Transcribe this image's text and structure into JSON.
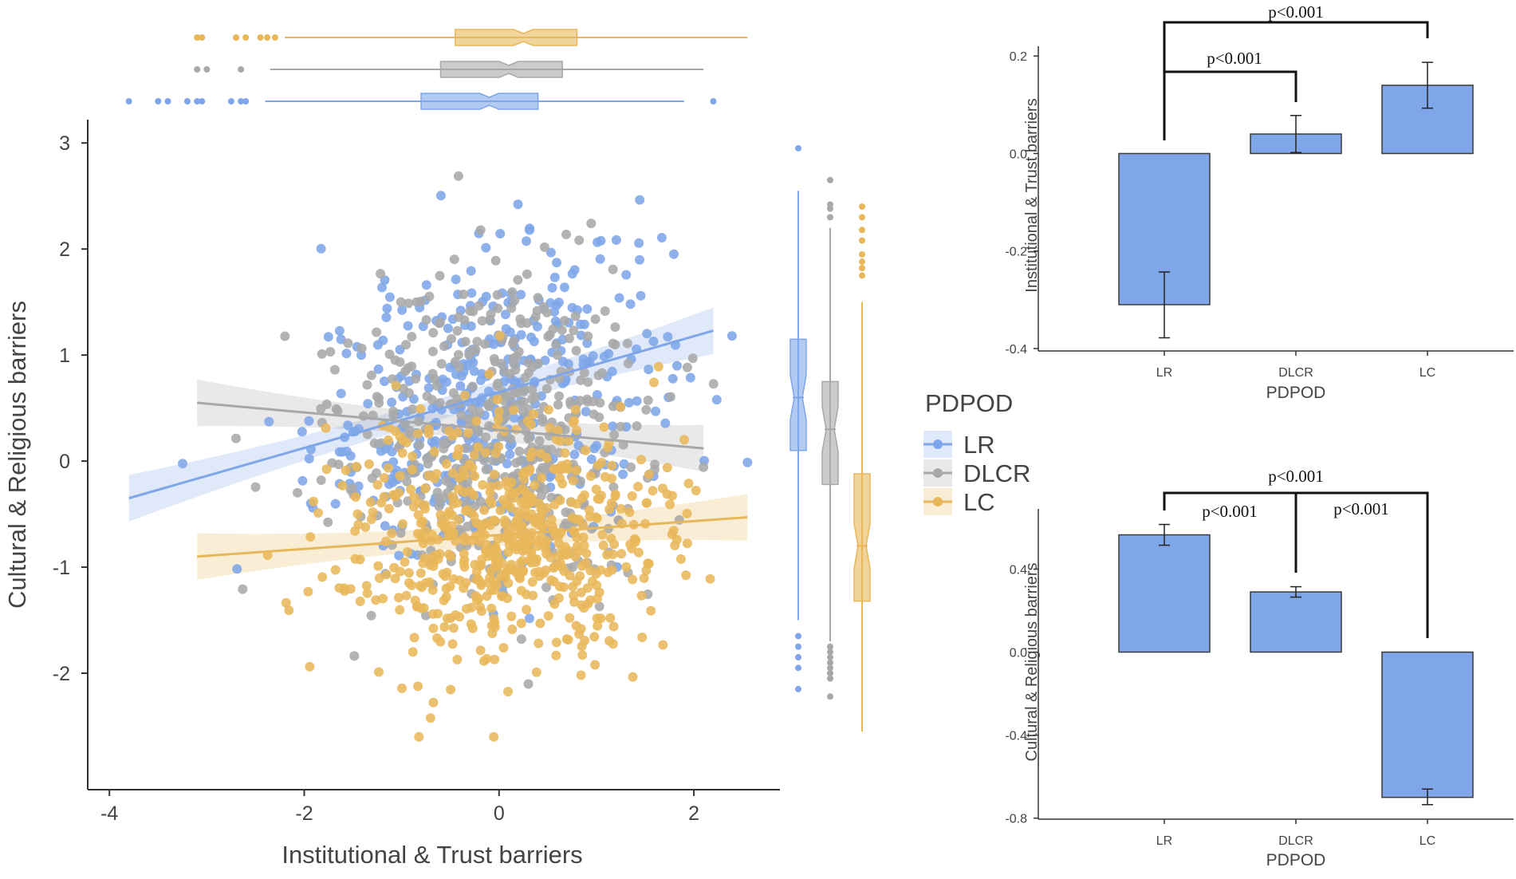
{
  "figure": {
    "groups": [
      "LR",
      "DLCR",
      "LC"
    ],
    "colors": {
      "LR": "#7ea6e8",
      "DLCR": "#a8a8a8",
      "LC": "#e8b75a"
    }
  },
  "chart_data": [
    {
      "type": "scatter",
      "title": "",
      "xlabel": "Institutional & Trust barriers",
      "ylabel": "Cultural & Religious barriers",
      "xlim": [
        -4.1,
        2.9
      ],
      "ylim": [
        -2.85,
        3.22
      ],
      "x_ticks": [
        "-4",
        "-2",
        "0",
        "2"
      ],
      "y_ticks": [
        "-2",
        "-1",
        "0",
        "1",
        "2",
        "3"
      ],
      "legend": {
        "title": "PDPOD",
        "entries": [
          "LR",
          "DLCR",
          "LC"
        ],
        "placement": "right"
      },
      "series": [
        {
          "name": "LR",
          "n": 420,
          "x_mean": -0.1,
          "x_sd": 0.9,
          "y_mean": 0.55,
          "y_sd": 0.7,
          "fit": {
            "x": [
              -3.8,
              2.2
            ],
            "y": [
              -0.35,
              1.23
            ]
          }
        },
        {
          "name": "DLCR",
          "n": 480,
          "x_mean": -0.05,
          "x_sd": 0.8,
          "y_mean": 0.3,
          "y_sd": 0.75,
          "fit": {
            "x": [
              -3.1,
              2.1
            ],
            "y": [
              0.55,
              0.12
            ]
          }
        },
        {
          "name": "LC",
          "n": 620,
          "x_mean": 0.05,
          "x_sd": 0.85,
          "y_mean": -0.75,
          "y_sd": 0.6,
          "fit": {
            "x": [
              -3.1,
              2.55
            ],
            "y": [
              -0.9,
              -0.53
            ]
          }
        }
      ],
      "marginal_x_boxplots": [
        {
          "name": "LC",
          "q1": -0.45,
          "median": 0.25,
          "q3": 0.8,
          "whisker_low": -2.2,
          "whisker_high": 2.55,
          "outliers": [
            -3.1,
            -3.05,
            -2.7,
            -2.6,
            -2.45,
            -2.38,
            -2.3
          ]
        },
        {
          "name": "DLCR",
          "q1": -0.6,
          "median": 0.1,
          "q3": 0.65,
          "whisker_low": -2.35,
          "whisker_high": 2.1,
          "outliers": [
            -3.1,
            -3.0,
            -2.65
          ]
        },
        {
          "name": "LR",
          "q1": -0.8,
          "median": -0.1,
          "q3": 0.4,
          "whisker_low": -2.4,
          "whisker_high": 1.9,
          "outliers": [
            -3.8,
            -3.5,
            -3.4,
            -3.2,
            -3.1,
            -3.05,
            -2.75,
            -2.65,
            -2.6,
            2.2
          ]
        }
      ],
      "marginal_y_boxplots": [
        {
          "name": "LR",
          "q1": 0.1,
          "median": 0.6,
          "q3": 1.15,
          "whisker_low": -1.5,
          "whisker_high": 2.55,
          "outliers": [
            2.95,
            -1.65,
            -1.75,
            -1.85,
            -1.95,
            -2.15
          ]
        },
        {
          "name": "DLCR",
          "q1": -0.22,
          "median": 0.3,
          "q3": 0.75,
          "whisker_low": -1.7,
          "whisker_high": 2.2,
          "outliers": [
            2.65,
            2.42,
            2.38,
            2.3,
            -1.75,
            -1.8,
            -1.85,
            -1.9,
            -1.95,
            -2.0,
            -2.05,
            -2.22
          ]
        },
        {
          "name": "LC",
          "q1": -1.32,
          "median": -0.8,
          "q3": -0.12,
          "whisker_low": -2.55,
          "whisker_high": 1.5,
          "outliers": [
            2.4,
            2.3,
            2.18,
            2.08,
            1.95,
            1.88,
            1.82,
            1.75
          ]
        }
      ]
    },
    {
      "type": "bar",
      "title": "",
      "categories": [
        "LR",
        "DLCR",
        "LC"
      ],
      "values": [
        -0.31,
        0.04,
        0.14
      ],
      "error_low": [
        -0.378,
        0.002,
        0.093
      ],
      "error_high": [
        -0.243,
        0.078,
        0.187
      ],
      "xlabel": "PDPOD",
      "ylabel": "Institutional & Trust barriers",
      "ylim": [
        -0.405,
        0.22
      ],
      "y_ticks": [
        "0.2",
        "0.0",
        "-0.2",
        "-0.4"
      ],
      "annotations": [
        {
          "from": "LR",
          "to": "DLCR",
          "label": "p<0.001"
        },
        {
          "from": "LR",
          "to": "LC",
          "label": "p<0.001"
        }
      ]
    },
    {
      "type": "bar",
      "title": "",
      "categories": [
        "LR",
        "DLCR",
        "LC"
      ],
      "values": [
        0.565,
        0.29,
        -0.7
      ],
      "error_low": [
        0.515,
        0.265,
        -0.735
      ],
      "error_high": [
        0.615,
        0.315,
        -0.66
      ],
      "xlabel": "PDPOD",
      "ylabel": "Cultural & Religious barriers",
      "ylim": [
        -0.805,
        0.69
      ],
      "y_ticks": [
        "0.4",
        "0.0",
        "-0.4",
        "-0.8"
      ],
      "annotations": [
        {
          "from": "LR",
          "to": "LC",
          "label": "p<0.001"
        },
        {
          "from": "LR",
          "to": "DLCR",
          "label": "p<0.001"
        },
        {
          "from": "DLCR",
          "to": "LC",
          "label": "p<0.001"
        }
      ]
    }
  ]
}
